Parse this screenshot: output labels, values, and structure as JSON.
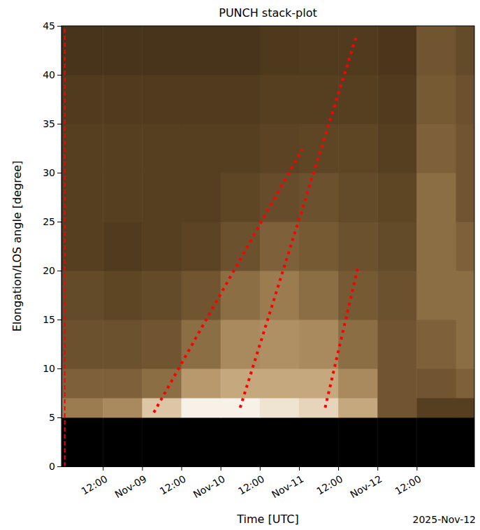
{
  "chart_data": {
    "type": "heatmap",
    "title": "PUNCH stack-plot",
    "x_label": "Time [UTC]",
    "y_label": "Elongation/LOS angle [degree]",
    "annotation": "2025-Nov-12",
    "xlim": [
      "2025-11-07T23:20",
      "2025-11-13T05:40"
    ],
    "xticks": [
      {
        "value": "2025-11-08T12:00",
        "label": "12:00"
      },
      {
        "value": "2025-11-09T00:00",
        "label": "Nov-09"
      },
      {
        "value": "2025-11-09T12:00",
        "label": "12:00"
      },
      {
        "value": "2025-11-10T00:00",
        "label": "Nov-10"
      },
      {
        "value": "2025-11-10T12:00",
        "label": "12:00"
      },
      {
        "value": "2025-11-11T00:00",
        "label": "Nov-11"
      },
      {
        "value": "2025-11-11T12:00",
        "label": "12:00"
      },
      {
        "value": "2025-11-12T00:00",
        "label": "Nov-12"
      },
      {
        "value": "2025-11-12T12:00",
        "label": "12:00"
      }
    ],
    "ylim": [
      0,
      45
    ],
    "yticks": [
      0,
      5,
      10,
      15,
      20,
      25,
      30,
      35,
      40,
      45
    ],
    "cells": {
      "x": [
        "2025-11-07T23:20",
        "2025-11-08T12:00",
        "2025-11-09T00:00",
        "2025-11-09T12:00",
        "2025-11-10T00:00",
        "2025-11-10T12:00",
        "2025-11-11T00:00",
        "2025-11-11T12:00",
        "2025-11-12T00:00",
        "2025-11-12T12:00",
        "2025-11-13T00:00",
        "2025-11-13T05:40"
      ],
      "y": [
        0,
        5,
        7,
        10,
        15,
        20,
        25,
        30,
        35,
        40,
        45
      ],
      "values": [
        [
          0,
          0,
          0,
          0,
          0,
          0,
          0,
          0,
          0,
          0,
          0
        ],
        [
          0.55,
          0.6,
          0.8,
          0.95,
          0.95,
          0.9,
          0.85,
          0.7,
          0.4,
          0.3,
          0.3
        ],
        [
          0.45,
          0.45,
          0.5,
          0.65,
          0.7,
          0.7,
          0.7,
          0.6,
          0.4,
          0.4,
          0.45
        ],
        [
          0.38,
          0.38,
          0.4,
          0.5,
          0.6,
          0.62,
          0.6,
          0.5,
          0.4,
          0.45,
          0.5
        ],
        [
          0.35,
          0.33,
          0.35,
          0.4,
          0.5,
          0.55,
          0.5,
          0.42,
          0.38,
          0.5,
          0.5
        ],
        [
          0.3,
          0.28,
          0.3,
          0.32,
          0.38,
          0.45,
          0.42,
          0.38,
          0.35,
          0.5,
          0.45
        ],
        [
          0.3,
          0.3,
          0.3,
          0.3,
          0.33,
          0.36,
          0.38,
          0.35,
          0.33,
          0.5,
          0.4
        ],
        [
          0.3,
          0.3,
          0.3,
          0.3,
          0.3,
          0.32,
          0.33,
          0.33,
          0.3,
          0.45,
          0.4
        ],
        [
          0.28,
          0.28,
          0.28,
          0.28,
          0.28,
          0.3,
          0.3,
          0.3,
          0.28,
          0.42,
          0.38
        ],
        [
          0.25,
          0.25,
          0.25,
          0.25,
          0.25,
          0.27,
          0.28,
          0.28,
          0.26,
          0.4,
          0.35
        ]
      ]
    },
    "series": [
      {
        "type": "line",
        "color": "#ff0000",
        "line_style": "dotted",
        "x": [
          "2025-11-09T03:35",
          "2025-11-11T01:00"
        ],
        "values": [
          5.5,
          32.4
        ]
      },
      {
        "type": "line",
        "color": "#ff0000",
        "line_style": "dotted",
        "x": [
          "2025-11-10T06:00",
          "2025-11-11T17:30"
        ],
        "values": [
          6.0,
          43.9
        ]
      },
      {
        "type": "line",
        "color": "#ff0000",
        "line_style": "dotted",
        "x": [
          "2025-11-11T08:00",
          "2025-11-11T18:00"
        ],
        "values": [
          6.0,
          20.3
        ]
      },
      {
        "type": "line",
        "color": "#ff0000",
        "line_style": "dashed",
        "x": [
          "2025-11-08T00:20",
          "2025-11-08T00:20"
        ],
        "values": [
          0,
          45
        ]
      }
    ]
  }
}
